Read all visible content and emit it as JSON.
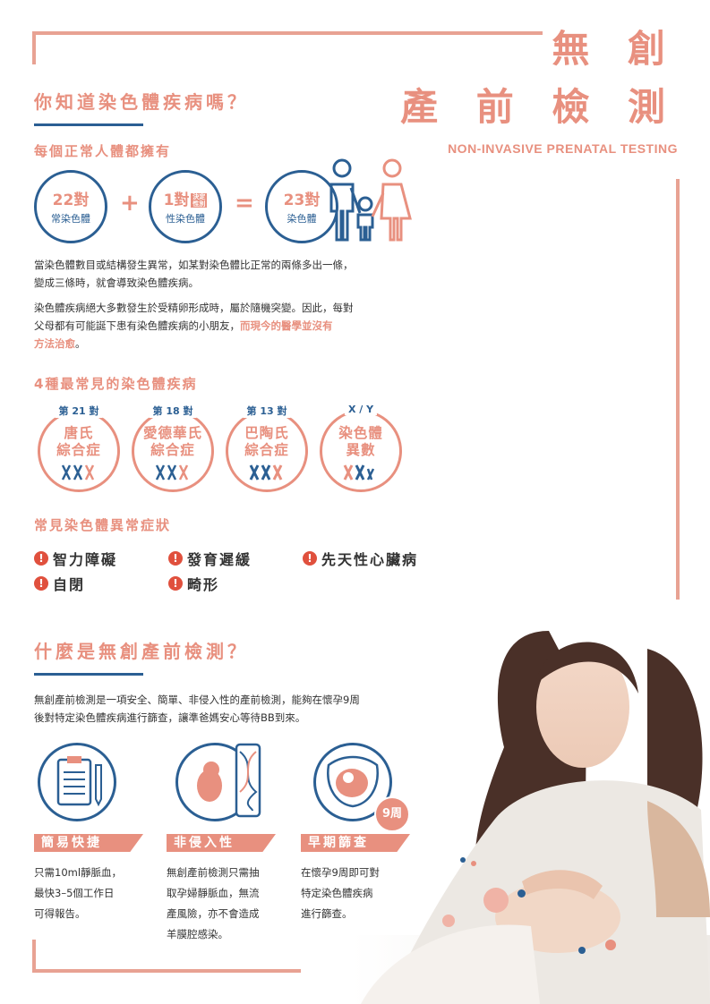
{
  "header": {
    "title_line1": "無 創",
    "title_line2": "產 前 檢 測",
    "subtitle": "NON-INVASIVE PRENATAL TESTING"
  },
  "section1": {
    "heading": "你知道染色體疾病嗎？",
    "subheading": "每個正常人體都擁有",
    "eq": {
      "a_num": "22對",
      "a_label": "常染色體",
      "plus": "+",
      "b_num": "1對",
      "b_badge": "決定性別",
      "b_label": "性染色體",
      "equals": "=",
      "c_num": "23對",
      "c_label": "染色體"
    },
    "para1_line1": "當染色體數目或結構發生異常，如某對染色體比正常的兩條多出一條，",
    "para1_line2": "變成三條時，就會導致染色體疾病。",
    "para2_line1": "染色體疾病絕大多數發生於受精卵形成時，屬於隨機突變。因此，每對",
    "para2_line2_a": "父母都有可能誕下患有染色體疾病的小朋友，",
    "para2_line2_b": "而現今的醫學並沒有",
    "para2_line3": "方法治愈",
    "para2_end": "。"
  },
  "diseases": {
    "heading": "4種最常見的染色體疾病",
    "items": [
      {
        "tag": "第 21 對",
        "name1": "唐氏",
        "name2": "綜合症"
      },
      {
        "tag": "第 18 對",
        "name1": "愛德華氏",
        "name2": "綜合症"
      },
      {
        "tag": "第 13 對",
        "name1": "巴陶氏",
        "name2": "綜合症"
      },
      {
        "tag": "X / Y",
        "name1": "染色體",
        "name2": "異數"
      }
    ]
  },
  "symptoms": {
    "heading": "常見染色體異常症狀",
    "items": [
      "智力障礙",
      "發育遲緩",
      "先天性心臟病",
      "自閉",
      "畸形"
    ]
  },
  "nipt": {
    "heading": "什麼是無創產前檢測？",
    "para_line1": "無創產前檢測是一項安全、簡單、非侵入性的產前檢測，能夠在懷孕9周",
    "para_line2": "後對特定染色體疾病進行篩查，讓準爸媽安心等待BB到來。",
    "features": [
      {
        "label": "簡易快捷",
        "lines": [
          "只需10ml靜脈血，",
          "最快3–5個工作日",
          "可得報告。"
        ]
      },
      {
        "label": "非侵入性",
        "lines": [
          "無創產前檢測只需抽",
          "取孕婦靜脈血，無流",
          "產風險，亦不會造成",
          "羊膜腔感染。"
        ]
      },
      {
        "label": "早期篩查",
        "lines": [
          "在懷孕9周即可對",
          "特定染色體疾病",
          "進行篩查。"
        ]
      }
    ],
    "week_badge": "9周"
  },
  "colors": {
    "accent": "#e8907f",
    "primary": "#2b5f93",
    "alert": "#e0503d"
  },
  "icons": [
    "clipboard-icon",
    "fetus-dna-icon",
    "womb-icon",
    "family-icon",
    "chromosome-icon",
    "alert-icon"
  ]
}
